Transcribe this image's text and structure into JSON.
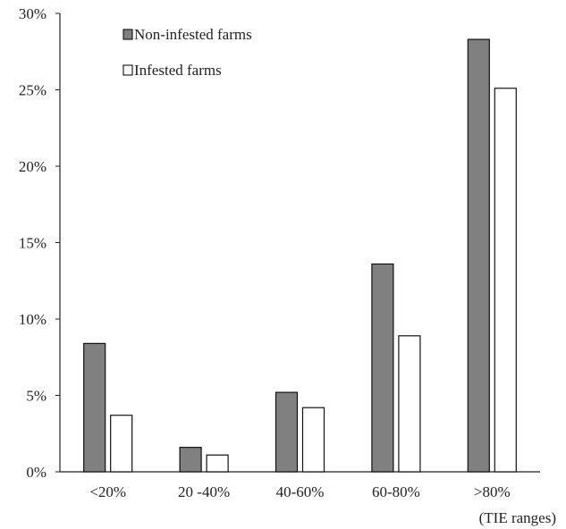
{
  "chart_data": {
    "type": "bar",
    "title": "",
    "xlabel": "(TIE ranges)",
    "ylabel": "",
    "categories": [
      "<20%",
      "20 -40%",
      "40-60%",
      "60-80%",
      ">80%"
    ],
    "series": [
      {
        "name": "Non-infested farms",
        "values": [
          8.4,
          1.6,
          5.2,
          13.6,
          28.3
        ],
        "color": "#808080"
      },
      {
        "name": "Infested farms",
        "values": [
          3.7,
          1.1,
          4.2,
          8.9,
          25.1
        ],
        "color": "#ffffff"
      }
    ],
    "ylim": [
      0,
      30
    ],
    "yticks": [
      0,
      5,
      10,
      15,
      20,
      25,
      30
    ],
    "ytick_labels": [
      "0%",
      "5%",
      "10%",
      "15%",
      "20%",
      "25%",
      "30%"
    ],
    "grid": false,
    "legend_position": "top-left"
  }
}
